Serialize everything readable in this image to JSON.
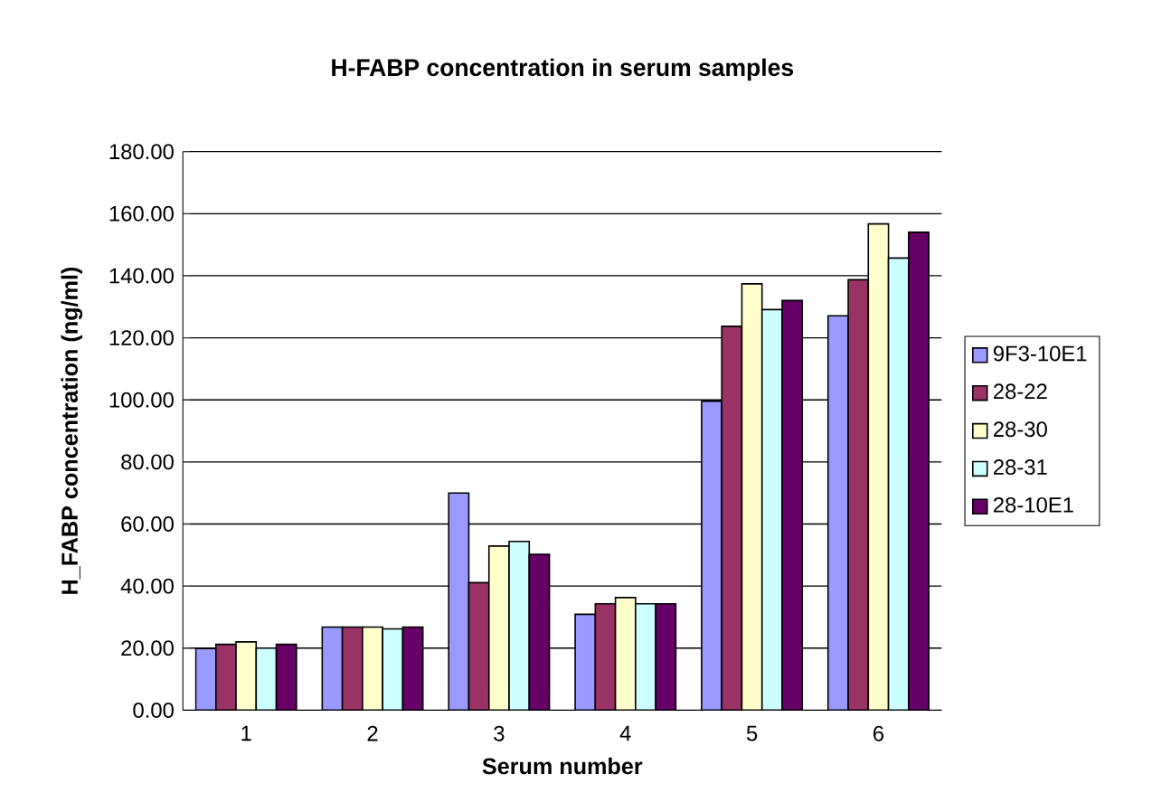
{
  "chart_data": {
    "type": "bar",
    "title": "H-FABP concentration in serum samples",
    "xlabel": "Serum number",
    "ylabel": "H_FABP concentration (ng/ml)",
    "categories": [
      "1",
      "2",
      "3",
      "4",
      "5",
      "6"
    ],
    "series": [
      {
        "name": "9F3-10E1",
        "color": "#9999ff",
        "values": [
          19.9,
          26.8,
          70.0,
          30.9,
          99.6,
          127.1
        ]
      },
      {
        "name": "28-22",
        "color": "#993366",
        "values": [
          21.2,
          26.8,
          41.1,
          34.3,
          123.7,
          138.7
        ]
      },
      {
        "name": "28-30",
        "color": "#ffffcc",
        "values": [
          22.0,
          26.8,
          52.9,
          36.3,
          137.4,
          156.7
        ]
      },
      {
        "name": "28-31",
        "color": "#ccffff",
        "values": [
          20.0,
          26.2,
          54.4,
          34.3,
          129.1,
          145.7
        ]
      },
      {
        "name": "28-10E1",
        "color": "#660066",
        "values": [
          21.2,
          26.8,
          50.2,
          34.3,
          132.0,
          154.0
        ]
      }
    ],
    "ylim": [
      0,
      180
    ],
    "yticks": [
      {
        "value": 0,
        "label": "0.00"
      },
      {
        "value": 20,
        "label": "20.00"
      },
      {
        "value": 40,
        "label": "40.00"
      },
      {
        "value": 60,
        "label": "60.00"
      },
      {
        "value": 80,
        "label": "80.00"
      },
      {
        "value": 100,
        "label": "100.00"
      },
      {
        "value": 120,
        "label": "120.00"
      },
      {
        "value": 140,
        "label": "140.00"
      },
      {
        "value": 160,
        "label": "160.00"
      },
      {
        "value": 180,
        "label": "180.00"
      }
    ],
    "grid": "y",
    "legend": "right"
  }
}
